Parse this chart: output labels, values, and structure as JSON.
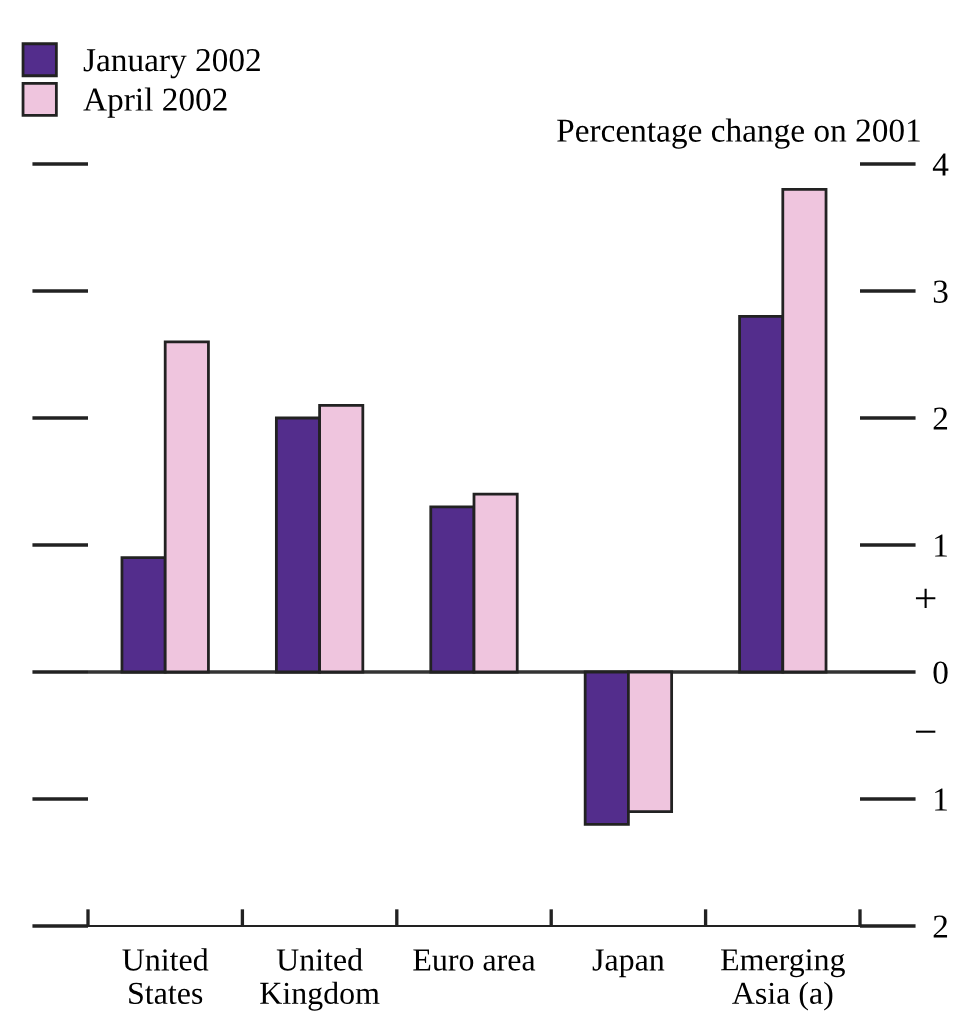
{
  "chart_data": {
    "type": "bar",
    "ylabel": "Percentage change on 2001",
    "categories": [
      "United\nStates",
      "United\nKingdom",
      "Euro area",
      "Japan",
      "Emerging\nAsia (a)"
    ],
    "series": [
      {
        "name": "January 2002",
        "color": "#532d8c",
        "values": [
          0.9,
          2.0,
          1.3,
          -1.2,
          2.8
        ]
      },
      {
        "name": "April 2002",
        "color": "#efc5de",
        "values": [
          2.6,
          2.1,
          1.4,
          -1.1,
          3.8
        ]
      }
    ],
    "ylim": [
      -2,
      4
    ],
    "yticks": [
      {
        "value": -2,
        "label": "2"
      },
      {
        "value": -1,
        "label": "1"
      },
      0,
      1,
      2,
      3,
      4
    ],
    "ref_lines": [
      {
        "axis": "y",
        "value": 0,
        "color": "#333333"
      }
    ],
    "annotations": [
      "+",
      "−"
    ],
    "legend": "top left",
    "grid": false
  }
}
